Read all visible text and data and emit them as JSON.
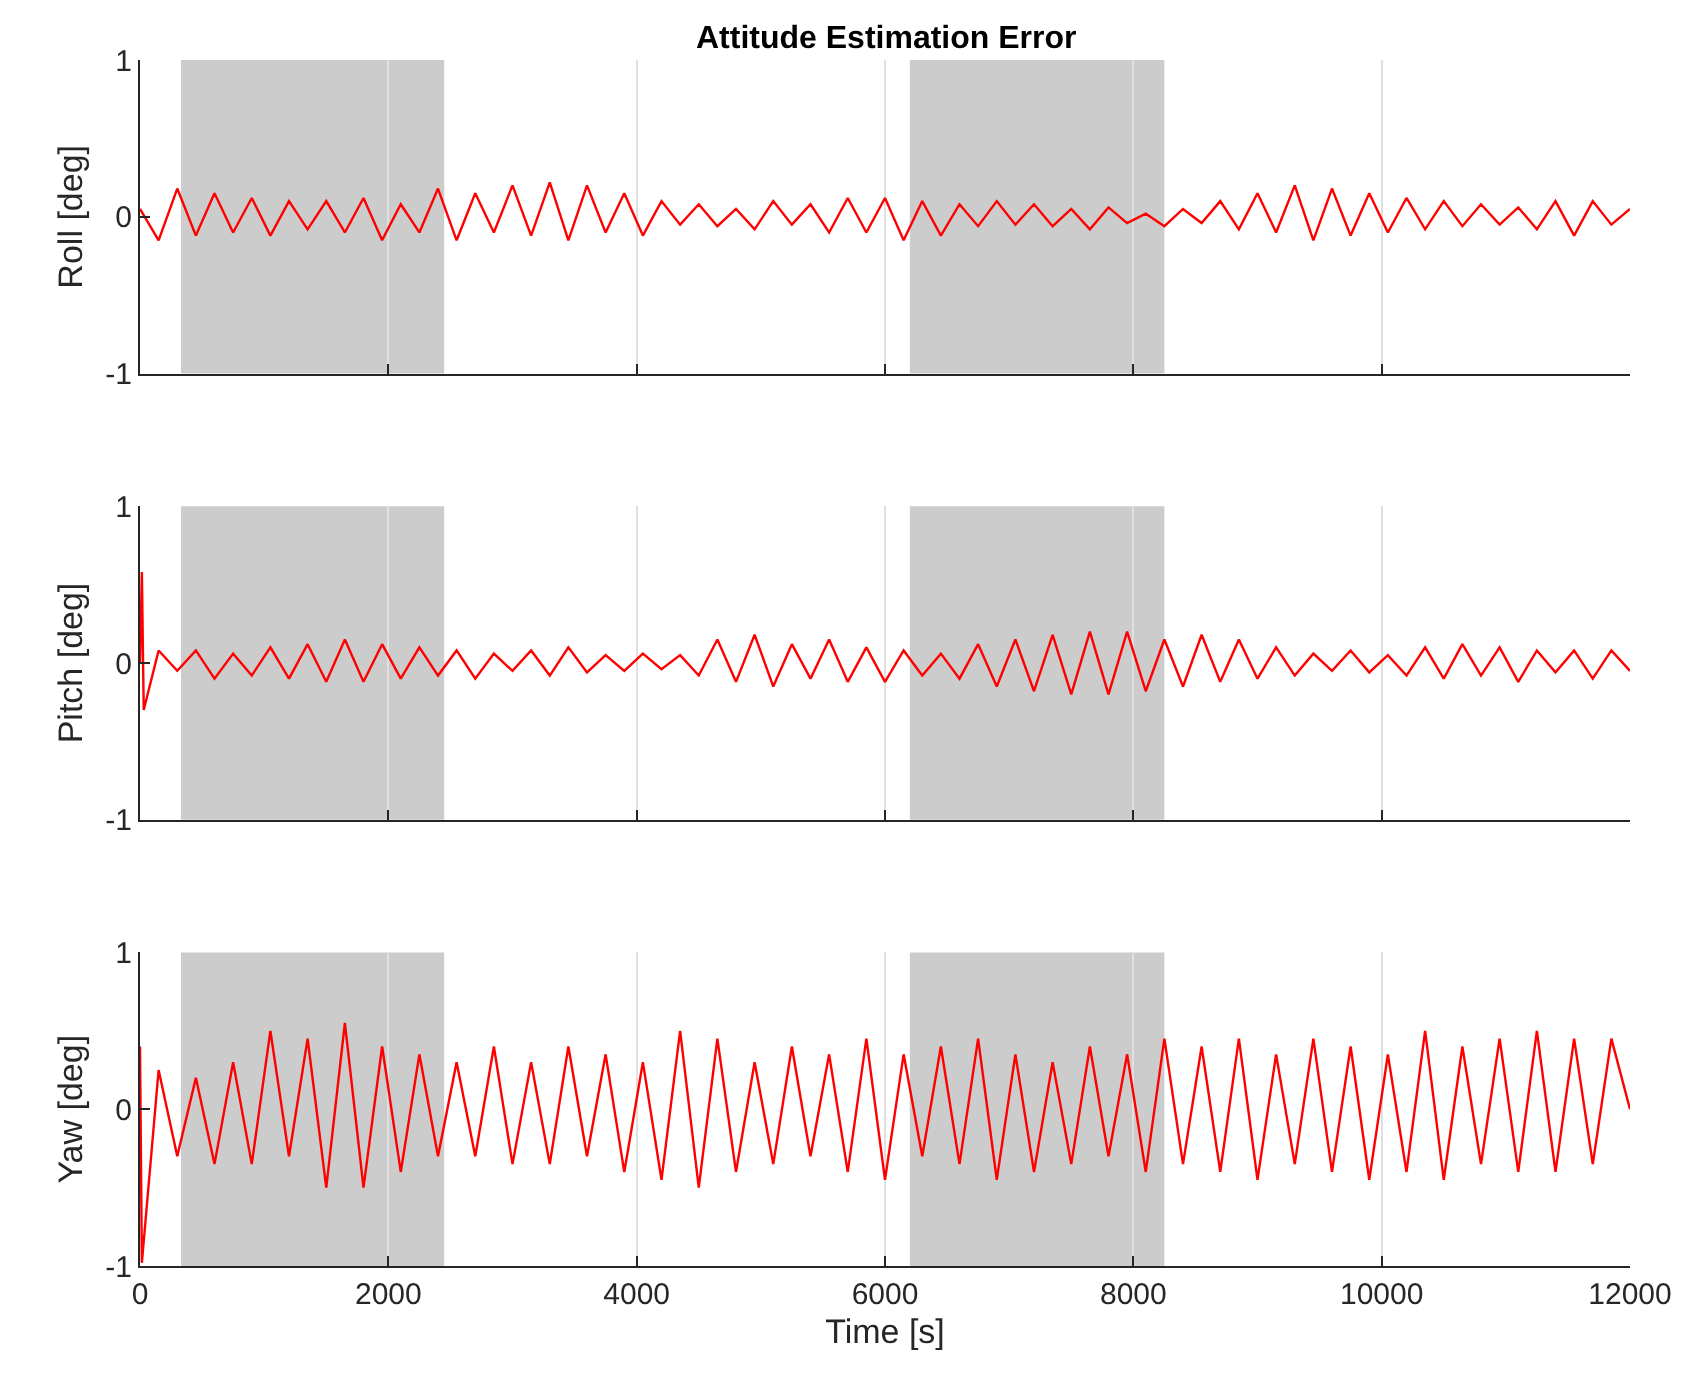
{
  "chart_data": [
    {
      "type": "line",
      "title": "Attitude Estimation Error",
      "ylabel": "Roll [deg]",
      "xlim": [
        0,
        12000
      ],
      "xticks": [
        0,
        2000,
        4000,
        6000,
        8000,
        10000,
        12000
      ],
      "ylim": [
        -1,
        1
      ],
      "yticks": [
        -1,
        0,
        1
      ],
      "grid": "x",
      "tick_labels": "y",
      "marker": "none",
      "line_style": "solid",
      "bands": [
        {
          "axis": "x",
          "from": 330,
          "to": 2450,
          "color": "#cccccc"
        },
        {
          "axis": "x",
          "from": 6200,
          "to": 8250,
          "color": "#cccccc"
        }
      ],
      "x": [
        0,
        150,
        300,
        450,
        600,
        750,
        900,
        1050,
        1200,
        1350,
        1500,
        1650,
        1800,
        1950,
        2100,
        2250,
        2400,
        2550,
        2700,
        2850,
        3000,
        3150,
        3300,
        3450,
        3600,
        3750,
        3900,
        4050,
        4200,
        4350,
        4500,
        4650,
        4800,
        4950,
        5100,
        5250,
        5400,
        5550,
        5700,
        5850,
        6000,
        6150,
        6300,
        6450,
        6600,
        6750,
        6900,
        7050,
        7200,
        7350,
        7500,
        7650,
        7800,
        7950,
        8100,
        8250,
        8400,
        8550,
        8700,
        8850,
        9000,
        9150,
        9300,
        9450,
        9600,
        9750,
        9900,
        10050,
        10200,
        10350,
        10500,
        10650,
        10800,
        10950,
        11100,
        11250,
        11400,
        11550,
        11700,
        11850,
        12000
      ],
      "series": [
        {
          "color": "#ff0000",
          "values": [
            0.05,
            -0.15,
            0.18,
            -0.12,
            0.15,
            -0.1,
            0.12,
            -0.12,
            0.1,
            -0.08,
            0.1,
            -0.1,
            0.12,
            -0.15,
            0.08,
            -0.1,
            0.18,
            -0.15,
            0.15,
            -0.1,
            0.2,
            -0.12,
            0.22,
            -0.15,
            0.2,
            -0.1,
            0.15,
            -0.12,
            0.1,
            -0.05,
            0.08,
            -0.06,
            0.05,
            -0.08,
            0.1,
            -0.05,
            0.08,
            -0.1,
            0.12,
            -0.1,
            0.12,
            -0.15,
            0.1,
            -0.12,
            0.08,
            -0.06,
            0.1,
            -0.05,
            0.08,
            -0.06,
            0.05,
            -0.08,
            0.06,
            -0.04,
            0.02,
            -0.06,
            0.05,
            -0.04,
            0.1,
            -0.08,
            0.15,
            -0.1,
            0.2,
            -0.15,
            0.18,
            -0.12,
            0.15,
            -0.1,
            0.12,
            -0.08,
            0.1,
            -0.06,
            0.08,
            -0.05,
            0.06,
            -0.08,
            0.1,
            -0.12,
            0.1,
            -0.05,
            0.05
          ]
        }
      ]
    },
    {
      "type": "line",
      "ylabel": "Pitch [deg]",
      "xlim": [
        0,
        12000
      ],
      "xticks": [
        0,
        2000,
        4000,
        6000,
        8000,
        10000,
        12000
      ],
      "ylim": [
        -1,
        1
      ],
      "yticks": [
        -1,
        0,
        1
      ],
      "grid": "x",
      "tick_labels": "y",
      "marker": "none",
      "line_style": "solid",
      "bands": [
        {
          "axis": "x",
          "from": 330,
          "to": 2450,
          "color": "#cccccc"
        },
        {
          "axis": "x",
          "from": 6200,
          "to": 8250,
          "color": "#cccccc"
        }
      ],
      "x": [
        0,
        15,
        30,
        150,
        300,
        450,
        600,
        750,
        900,
        1050,
        1200,
        1350,
        1500,
        1650,
        1800,
        1950,
        2100,
        2250,
        2400,
        2550,
        2700,
        2850,
        3000,
        3150,
        3300,
        3450,
        3600,
        3750,
        3900,
        4050,
        4200,
        4350,
        4500,
        4650,
        4800,
        4950,
        5100,
        5250,
        5400,
        5550,
        5700,
        5850,
        6000,
        6150,
        6300,
        6450,
        6600,
        6750,
        6900,
        7050,
        7200,
        7350,
        7500,
        7650,
        7800,
        7950,
        8100,
        8250,
        8400,
        8550,
        8700,
        8850,
        9000,
        9150,
        9300,
        9450,
        9600,
        9750,
        9900,
        10050,
        10200,
        10350,
        10500,
        10650,
        10800,
        10950,
        11100,
        11250,
        11400,
        11550,
        11700,
        11850,
        12000
      ],
      "series": [
        {
          "color": "#ff0000",
          "values": [
            0,
            0.58,
            -0.3,
            0.08,
            -0.05,
            0.08,
            -0.1,
            0.06,
            -0.08,
            0.1,
            -0.1,
            0.12,
            -0.12,
            0.15,
            -0.12,
            0.12,
            -0.1,
            0.1,
            -0.08,
            0.08,
            -0.1,
            0.06,
            -0.05,
            0.08,
            -0.08,
            0.1,
            -0.06,
            0.05,
            -0.05,
            0.06,
            -0.04,
            0.05,
            -0.08,
            0.15,
            -0.12,
            0.18,
            -0.15,
            0.12,
            -0.1,
            0.15,
            -0.12,
            0.1,
            -0.12,
            0.08,
            -0.08,
            0.06,
            -0.1,
            0.12,
            -0.15,
            0.15,
            -0.18,
            0.18,
            -0.2,
            0.2,
            -0.2,
            0.2,
            -0.18,
            0.15,
            -0.15,
            0.18,
            -0.12,
            0.15,
            -0.1,
            0.1,
            -0.08,
            0.06,
            -0.05,
            0.08,
            -0.06,
            0.05,
            -0.08,
            0.1,
            -0.1,
            0.12,
            -0.08,
            0.1,
            -0.12,
            0.08,
            -0.06,
            0.08,
            -0.1,
            0.08,
            -0.05
          ]
        }
      ]
    },
    {
      "type": "line",
      "ylabel": "Yaw [deg]",
      "xlabel": "Time [s]",
      "xlim": [
        0,
        12000
      ],
      "xticks": [
        0,
        2000,
        4000,
        6000,
        8000,
        10000,
        12000
      ],
      "ylim": [
        -1,
        1
      ],
      "yticks": [
        -1,
        0,
        1
      ],
      "grid": "x",
      "marker": "none",
      "line_style": "solid",
      "bands": [
        {
          "axis": "x",
          "from": 330,
          "to": 2450,
          "color": "#cccccc"
        },
        {
          "axis": "x",
          "from": 6200,
          "to": 8250,
          "color": "#cccccc"
        }
      ],
      "x": [
        0,
        15,
        150,
        300,
        450,
        600,
        750,
        900,
        1050,
        1200,
        1350,
        1500,
        1650,
        1800,
        1950,
        2100,
        2250,
        2400,
        2550,
        2700,
        2850,
        3000,
        3150,
        3300,
        3450,
        3600,
        3750,
        3900,
        4050,
        4200,
        4350,
        4500,
        4650,
        4800,
        4950,
        5100,
        5250,
        5400,
        5550,
        5700,
        5850,
        6000,
        6150,
        6300,
        6450,
        6600,
        6750,
        6900,
        7050,
        7200,
        7350,
        7500,
        7650,
        7800,
        7950,
        8100,
        8250,
        8400,
        8550,
        8700,
        8850,
        9000,
        9150,
        9300,
        9450,
        9600,
        9750,
        9900,
        10050,
        10200,
        10350,
        10500,
        10650,
        10800,
        10950,
        11100,
        11250,
        11400,
        11550,
        11700,
        11850,
        12000
      ],
      "series": [
        {
          "color": "#ff0000",
          "values": [
            0.4,
            -0.98,
            0.25,
            -0.3,
            0.2,
            -0.35,
            0.3,
            -0.35,
            0.5,
            -0.3,
            0.45,
            -0.5,
            0.55,
            -0.5,
            0.4,
            -0.4,
            0.35,
            -0.3,
            0.3,
            -0.3,
            0.4,
            -0.35,
            0.3,
            -0.35,
            0.4,
            -0.3,
            0.35,
            -0.4,
            0.3,
            -0.45,
            0.5,
            -0.5,
            0.45,
            -0.4,
            0.3,
            -0.35,
            0.4,
            -0.3,
            0.35,
            -0.4,
            0.45,
            -0.45,
            0.35,
            -0.3,
            0.4,
            -0.35,
            0.45,
            -0.45,
            0.35,
            -0.4,
            0.3,
            -0.35,
            0.4,
            -0.3,
            0.35,
            -0.4,
            0.45,
            -0.35,
            0.4,
            -0.4,
            0.45,
            -0.45,
            0.35,
            -0.35,
            0.45,
            -0.4,
            0.4,
            -0.45,
            0.35,
            -0.4,
            0.5,
            -0.45,
            0.4,
            -0.35,
            0.45,
            -0.4,
            0.5,
            -0.4,
            0.45,
            -0.35,
            0.45,
            0
          ]
        }
      ]
    }
  ]
}
